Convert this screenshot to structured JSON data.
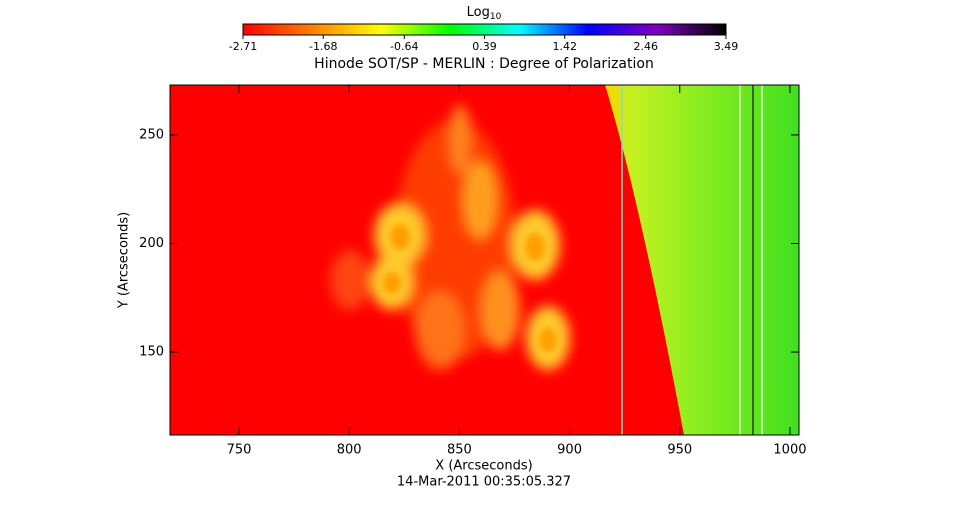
{
  "chart_data": {
    "type": "heatmap",
    "title": "Hinode SOT/SP - MERLIN : Degree of Polarization",
    "x_label": "X (Arcseconds)",
    "y_label": "Y (Arcseconds)",
    "footnote": "14-Mar-2011 00:35:05.327",
    "colorbar_label": {
      "base": "Log",
      "subscript": "10"
    },
    "colorbar_lim": [
      -2.71,
      3.49
    ],
    "colorbar_ticks": [
      -2.71,
      -1.68,
      -0.64,
      0.39,
      1.42,
      2.46,
      3.49
    ],
    "colormap": [
      "#ff0000",
      "#ff8000",
      "#ffff00",
      "#00ff00",
      "#00ffff",
      "#0000ff",
      "#8000c0",
      "#000000"
    ],
    "xlim": [
      718.7,
      1004.1
    ],
    "xticks": [
      750,
      800,
      850,
      900,
      950,
      1000
    ],
    "ylim": [
      111.8,
      273
    ],
    "yticks": [
      150,
      200,
      250
    ]
  }
}
